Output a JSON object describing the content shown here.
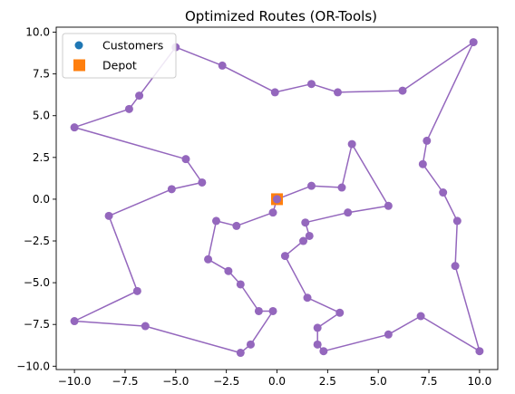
{
  "chart_data": {
    "type": "scatter",
    "title": "Optimized Routes (OR-Tools)",
    "xlabel": "",
    "ylabel": "",
    "xlim": [
      -10.9,
      10.9
    ],
    "ylim": [
      -10.2,
      10.3
    ],
    "xticks": [
      -10.0,
      -7.5,
      -5.0,
      -2.5,
      0.0,
      2.5,
      5.0,
      7.5,
      10.0
    ],
    "xtick_labels": [
      "−10.0",
      "−7.5",
      "−5.0",
      "−2.5",
      "0.0",
      "2.5",
      "5.0",
      "7.5",
      "10.0"
    ],
    "yticks": [
      -10.0,
      -7.5,
      -5.0,
      -2.5,
      0.0,
      2.5,
      5.0,
      7.5,
      10.0
    ],
    "ytick_labels": [
      "−10.0",
      "−7.5",
      "−5.0",
      "−2.5",
      "0.0",
      "2.5",
      "5.0",
      "7.5",
      "10.0"
    ],
    "legend": {
      "placement": "top-left",
      "entries": [
        {
          "label": "Customers",
          "color": "#1f77b4",
          "marker": "circle"
        },
        {
          "label": "Depot",
          "color": "#ff7f0e",
          "marker": "square"
        }
      ]
    },
    "depot": {
      "x": 0.0,
      "y": 0.0,
      "color": "#ff7f0e"
    },
    "customers_color": "#1f77b4",
    "route_color": "#9467bd",
    "route": [
      [
        0.0,
        0.0
      ],
      [
        1.7,
        0.8
      ],
      [
        3.2,
        0.7
      ],
      [
        3.7,
        3.3
      ],
      [
        5.5,
        -0.4
      ],
      [
        3.5,
        -0.8
      ],
      [
        1.4,
        -1.4
      ],
      [
        1.6,
        -2.2
      ],
      [
        1.3,
        -2.5
      ],
      [
        0.4,
        -3.4
      ],
      [
        1.5,
        -5.9
      ],
      [
        3.1,
        -6.8
      ],
      [
        2.0,
        -7.7
      ],
      [
        2.0,
        -8.7
      ],
      [
        2.3,
        -9.1
      ],
      [
        5.5,
        -8.1
      ],
      [
        7.1,
        -7.0
      ],
      [
        10.0,
        -9.1
      ],
      [
        8.8,
        -4.0
      ],
      [
        8.9,
        -1.3
      ],
      [
        8.2,
        0.4
      ],
      [
        7.2,
        2.1
      ],
      [
        7.4,
        3.5
      ],
      [
        9.7,
        9.4
      ],
      [
        6.2,
        6.5
      ],
      [
        3.0,
        6.4
      ],
      [
        1.7,
        6.9
      ],
      [
        -0.1,
        6.4
      ],
      [
        -2.7,
        8.0
      ],
      [
        -5.0,
        9.1
      ],
      [
        -6.8,
        6.2
      ],
      [
        -7.3,
        5.4
      ],
      [
        -10.0,
        4.3
      ],
      [
        -4.5,
        2.4
      ],
      [
        -3.7,
        1.0
      ],
      [
        -5.2,
        0.6
      ],
      [
        -8.3,
        -1.0
      ],
      [
        -6.9,
        -5.5
      ],
      [
        -10.0,
        -7.3
      ],
      [
        -6.5,
        -7.6
      ],
      [
        -1.8,
        -9.2
      ],
      [
        -1.3,
        -8.7
      ],
      [
        -0.2,
        -6.7
      ],
      [
        -0.9,
        -6.7
      ],
      [
        -1.8,
        -5.1
      ],
      [
        -2.4,
        -4.3
      ],
      [
        -3.4,
        -3.6
      ],
      [
        -3.0,
        -1.3
      ],
      [
        -2.0,
        -1.6
      ],
      [
        -0.2,
        -0.8
      ],
      [
        0.0,
        0.0
      ]
    ]
  }
}
